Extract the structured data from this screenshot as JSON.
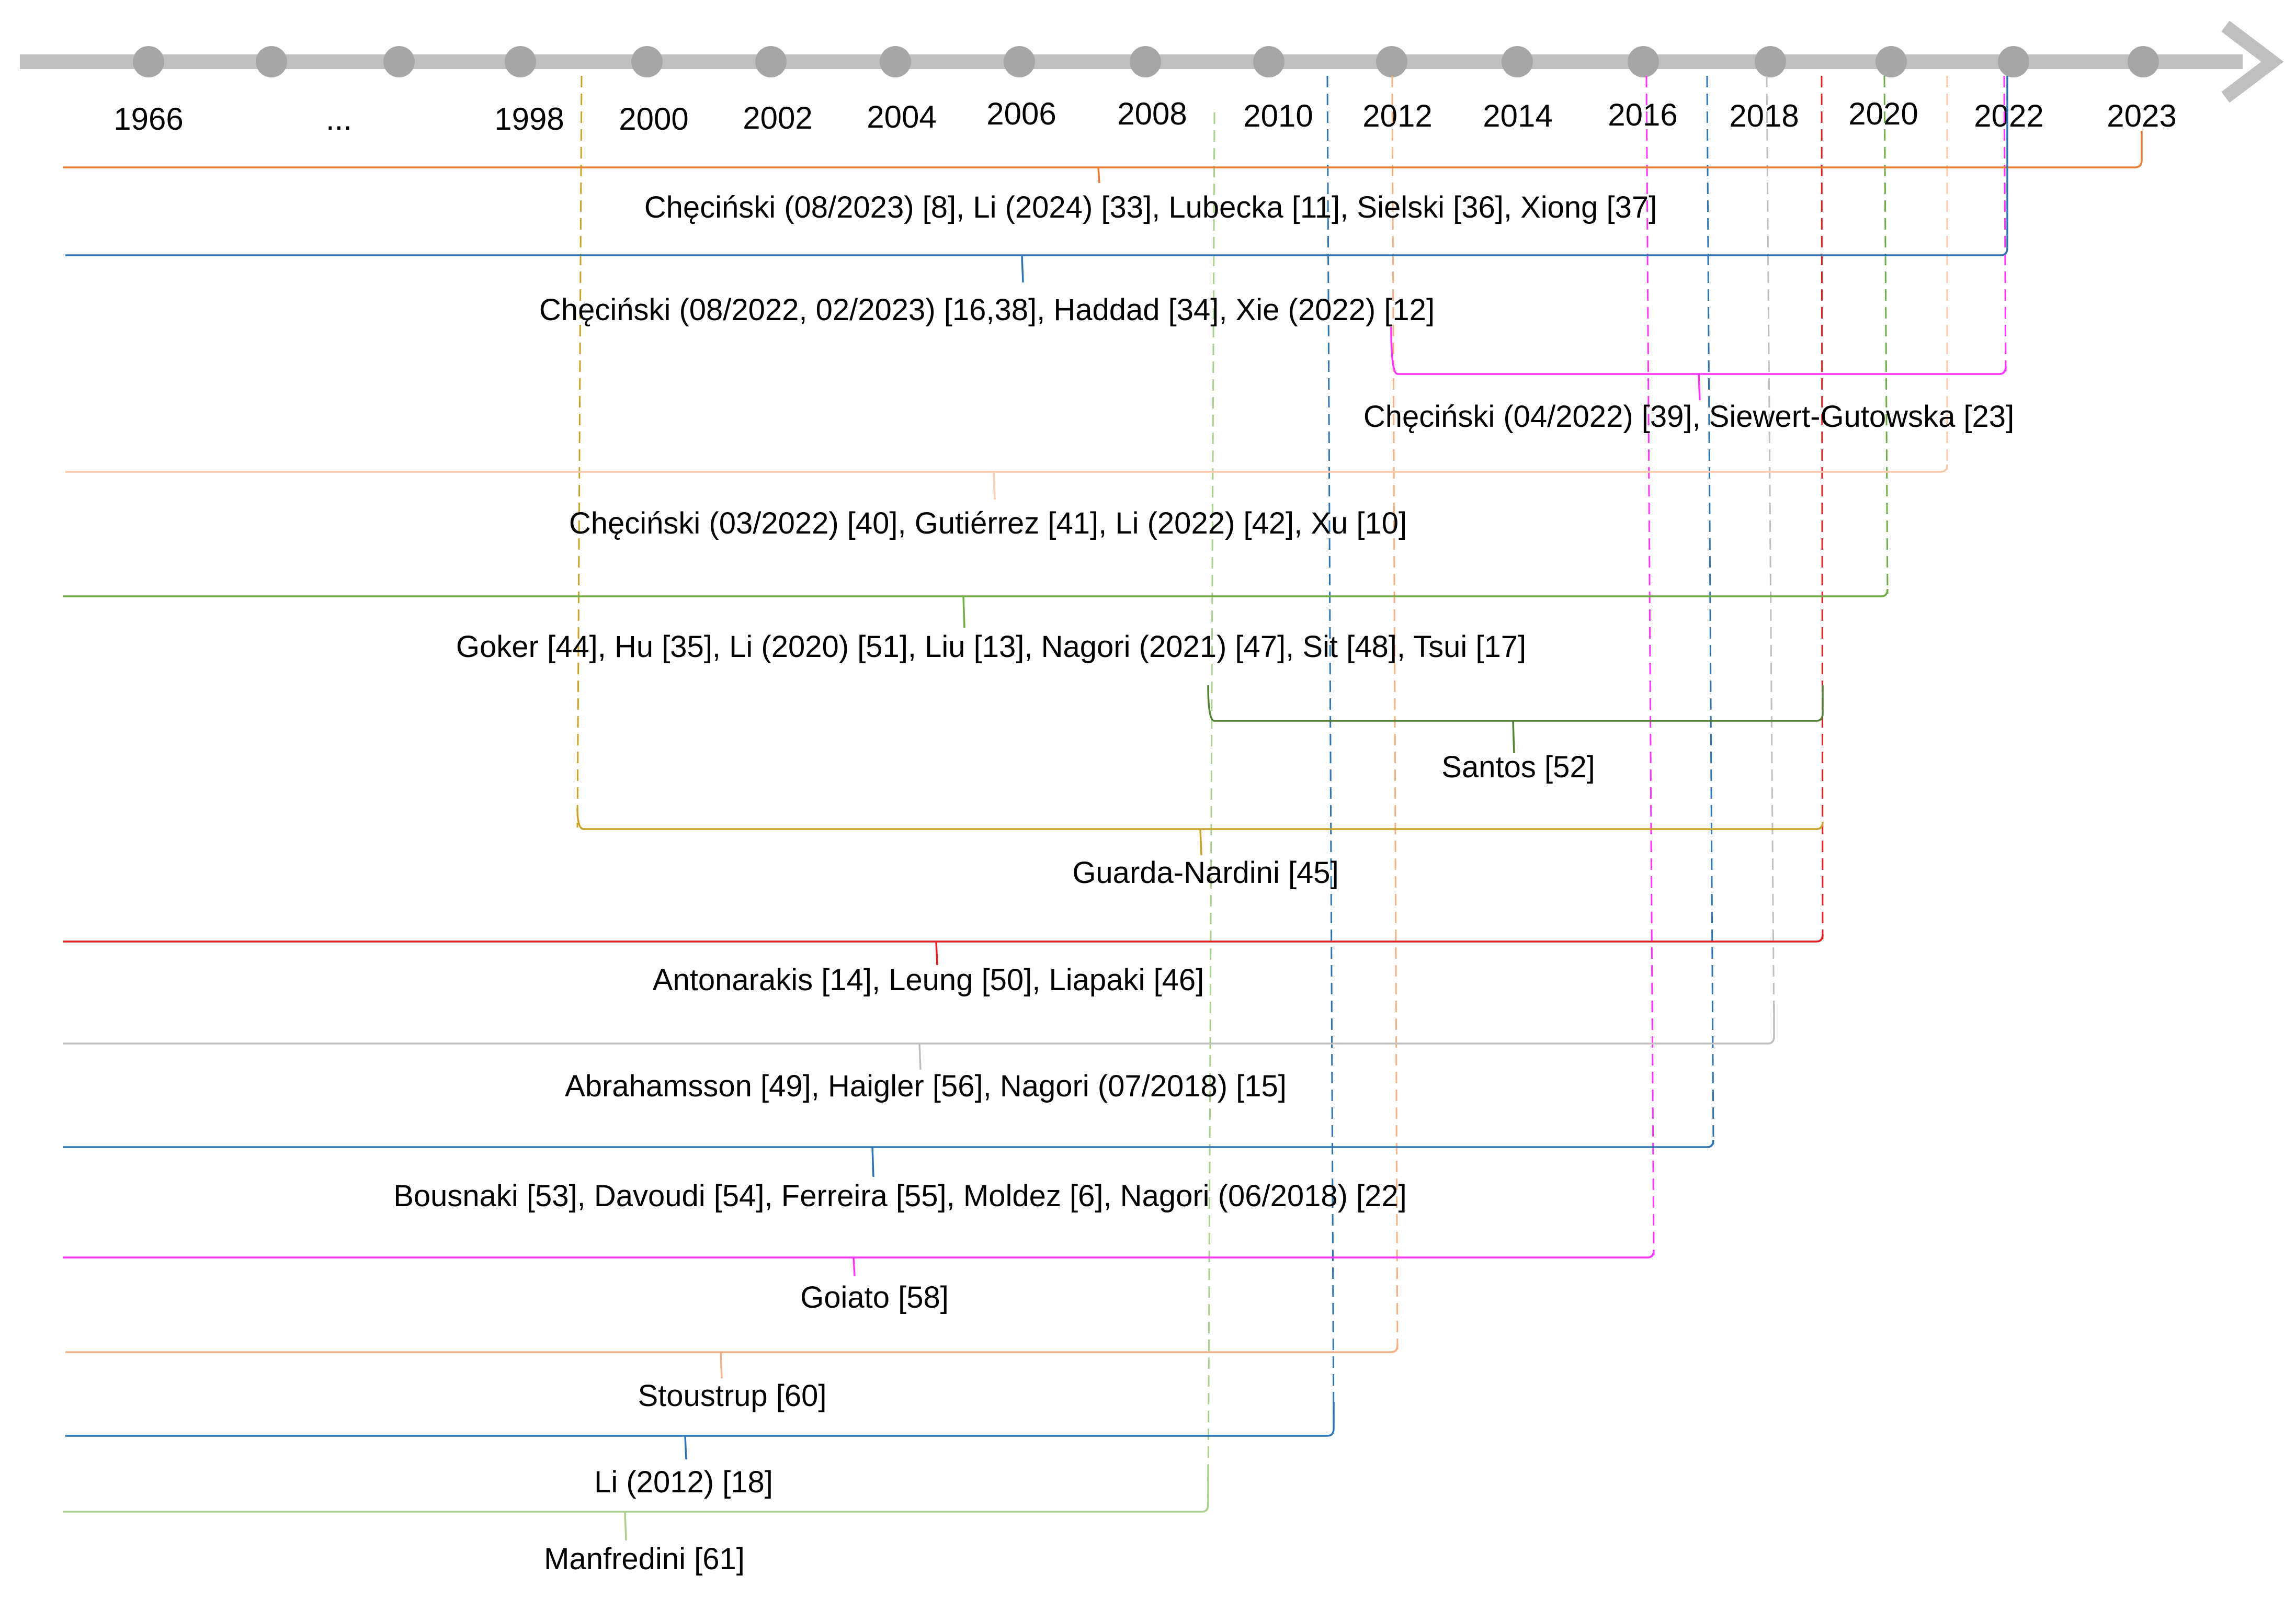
{
  "timeline": {
    "axis_color": "#bfbfbf",
    "dot_color": "#a6a6a6",
    "ticks": [
      {
        "label": "1966",
        "dot": true
      },
      {
        "label": "",
        "dot": true
      },
      {
        "label": "...",
        "dot": true
      },
      {
        "label": "1998",
        "dot": true
      },
      {
        "label": "2000",
        "dot": true
      },
      {
        "label": "2002",
        "dot": true
      },
      {
        "label": "2004",
        "dot": true
      },
      {
        "label": "2006",
        "dot": true
      },
      {
        "label": "2008",
        "dot": true
      },
      {
        "label": "2010",
        "dot": true
      },
      {
        "label": "2012",
        "dot": true
      },
      {
        "label": "2014",
        "dot": true
      },
      {
        "label": "2016",
        "dot": true
      },
      {
        "label": "2018",
        "dot": true
      },
      {
        "label": "2020",
        "dot": true
      },
      {
        "label": "2022",
        "dot": true
      },
      {
        "label": "2023",
        "dot": true
      }
    ]
  },
  "groups": [
    {
      "label": "Chęciński (08/2023) [8], Li (2024) [33], Lubecka [11], Sielski [36], Xiong [37]",
      "color": "#ed7d31"
    },
    {
      "label": "Chęciński (08/2022, 02/2023) [16,38], Haddad [34], Xie (2022) [12]",
      "color": "#2e75b6"
    },
    {
      "label": "Chęciński (04/2022) [39], Siewert-Gutowska [23]",
      "color": "#ff33ff"
    },
    {
      "label": "Chęciński (03/2022) [40], Gutiérrez [41], Li (2022) [42], Xu [10]",
      "color": "#f8cbad"
    },
    {
      "label": "Goker [44], Hu [35], Li (2020) [51], Liu [13], Nagori (2021) [47], Sit [48], Tsui [17]",
      "color": "#70ad47"
    },
    {
      "label": "Santos [52]",
      "color": "#548235"
    },
    {
      "label": "Guarda-Nardini [45]",
      "color": "#c9a227"
    },
    {
      "label": "Antonarakis [14], Leung [50], Liapaki [46]",
      "color": "#e02020"
    },
    {
      "label": "Abrahamsson [49], Haigler [56], Nagori (07/2018) [15]",
      "color": "#bfbfbf"
    },
    {
      "label": "Bousnaki [53], Davoudi [54], Ferreira [55], Moldez [6], Nagori (06/2018) [22]",
      "color": "#2e75b6"
    },
    {
      "label": "Goiato [58]",
      "color": "#ff33ff"
    },
    {
      "label": "Stoustrup [60]",
      "color": "#f4b183"
    },
    {
      "label": "Li (2012) [18]",
      "color": "#2e75b6"
    },
    {
      "label": "Manfredini [61]",
      "color": "#a9d18e"
    }
  ]
}
